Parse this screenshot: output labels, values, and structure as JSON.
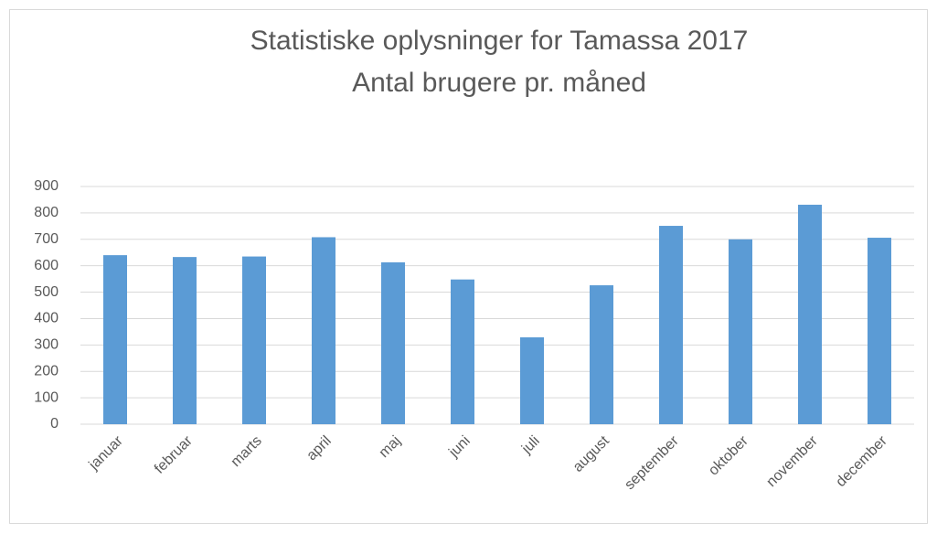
{
  "chart_data": {
    "type": "bar",
    "title": "Statistiske oplysninger for Tamassa 2017",
    "subtitle": "Antal brugere pr. måned",
    "categories": [
      "januar",
      "februar",
      "marts",
      "april",
      "maj",
      "juni",
      "juli",
      "august",
      "september",
      "oktober",
      "november",
      "december"
    ],
    "values": [
      640,
      633,
      635,
      708,
      613,
      548,
      329,
      526,
      751,
      700,
      831,
      706
    ],
    "color": "#5b9bd5",
    "ylim": [
      0,
      900
    ],
    "yticks": [
      0,
      100,
      200,
      300,
      400,
      500,
      600,
      700,
      800,
      900
    ],
    "grid": true
  }
}
